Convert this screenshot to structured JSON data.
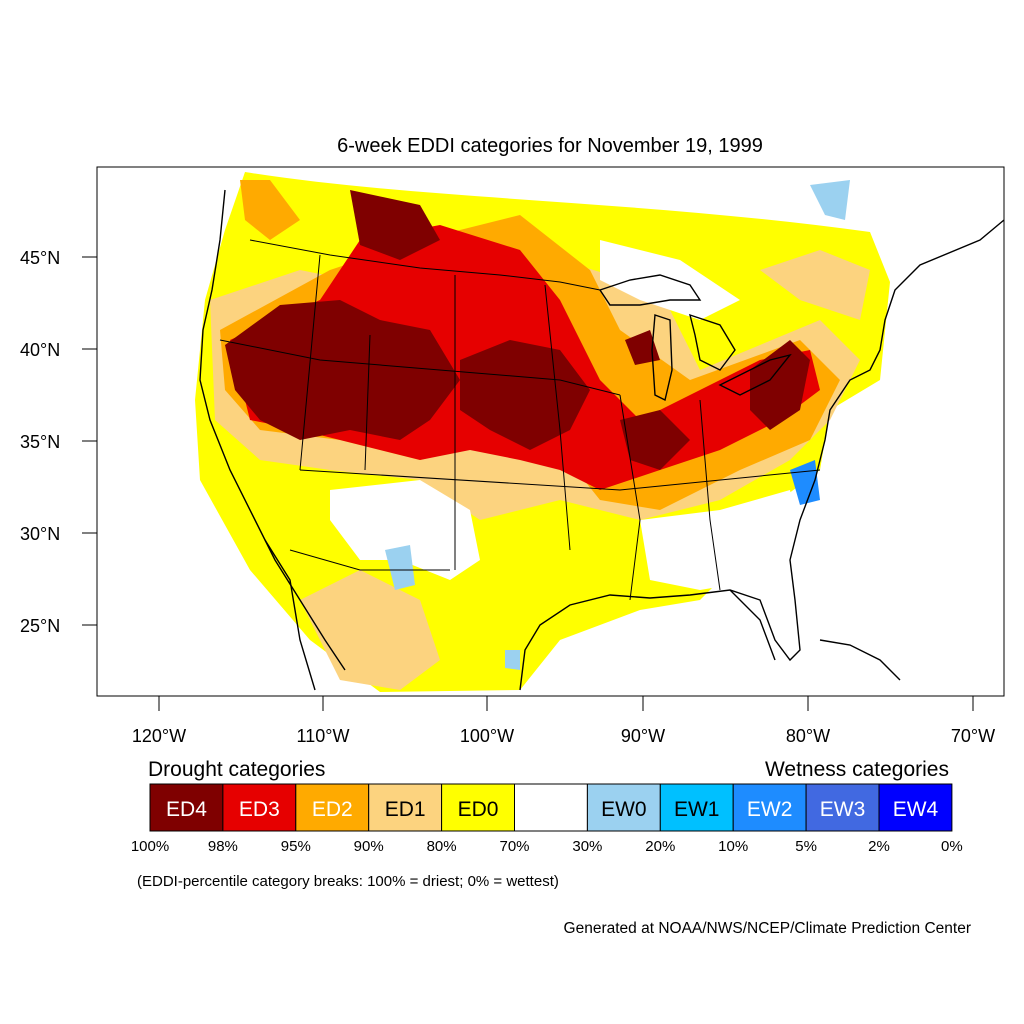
{
  "title": "6-week EDDI categories for November 19, 1999",
  "map": {
    "lat_labels": [
      "45°N",
      "40°N",
      "35°N",
      "30°N",
      "25°N"
    ],
    "lon_labels": [
      "120°W",
      "110°W",
      "100°W",
      "90°W",
      "80°W",
      "70°W"
    ]
  },
  "legend": {
    "drought_heading": "Drought categories",
    "wetness_heading": "Wetness categories",
    "categories": [
      {
        "label": "ED4",
        "color": "#7f0000",
        "text_color": "#ffffff"
      },
      {
        "label": "ED3",
        "color": "#e60000",
        "text_color": "#ffffff"
      },
      {
        "label": "ED2",
        "color": "#ffaa00",
        "text_color": "#ffffff"
      },
      {
        "label": "ED1",
        "color": "#fcd37f",
        "text_color": "#000000"
      },
      {
        "label": "ED0",
        "color": "#ffff00",
        "text_color": "#000000"
      },
      {
        "label": "",
        "color": "#ffffff",
        "text_color": "#000000"
      },
      {
        "label": "EW0",
        "color": "#9bd1f0",
        "text_color": "#000000"
      },
      {
        "label": "EW1",
        "color": "#00c0ff",
        "text_color": "#000000"
      },
      {
        "label": "EW2",
        "color": "#1e8cff",
        "text_color": "#ffffff"
      },
      {
        "label": "EW3",
        "color": "#4169e1",
        "text_color": "#ffffff"
      },
      {
        "label": "EW4",
        "color": "#0000ff",
        "text_color": "#ffffff"
      }
    ],
    "breaks": [
      "100%",
      "98%",
      "95%",
      "90%",
      "80%",
      "70%",
      "30%",
      "20%",
      "10%",
      "5%",
      "2%",
      "0%"
    ],
    "note": "(EDDI-percentile category breaks: 100% = driest; 0% = wettest)"
  },
  "credit": "Generated at NOAA/NWS/NCEP/Climate Prediction Center"
}
